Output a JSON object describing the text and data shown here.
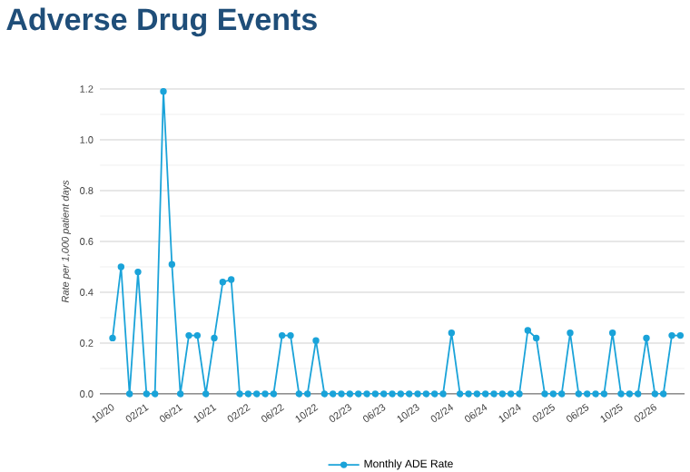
{
  "chart_data": {
    "type": "line",
    "title": "Adverse Drug Events",
    "ylabel": "Rate per 1,000 patient days",
    "categories": [
      "10/20",
      null,
      null,
      null,
      "02/21",
      null,
      null,
      null,
      "06/21",
      null,
      null,
      null,
      "10/21",
      null,
      null,
      null,
      "02/22",
      null,
      null,
      null,
      "06/22",
      null,
      null,
      null,
      "10/22",
      null,
      null,
      null,
      "02/23",
      null,
      null,
      null,
      "06/23",
      null,
      null,
      null,
      "10/23",
      null,
      null,
      null,
      "02/24",
      null,
      null,
      null,
      "06/24",
      null,
      null,
      null,
      "10/24",
      null,
      null,
      null,
      "02/25",
      null,
      null,
      null,
      "06/25",
      null,
      null,
      null,
      "10/25",
      null,
      null,
      null,
      "02/26",
      null,
      null,
      null
    ],
    "series": [
      {
        "name": "Monthly ADE Rate",
        "color": "#1aa3d9",
        "values": [
          0.22,
          0.5,
          0,
          0.48,
          0,
          0,
          1.19,
          0.51,
          0,
          0.23,
          0.23,
          0,
          0.22,
          0.44,
          0.45,
          0,
          0,
          0,
          0,
          0,
          0.23,
          0.23,
          0,
          0,
          0.21,
          0,
          0,
          0,
          0,
          0,
          0,
          0,
          0,
          0,
          0,
          0,
          0,
          0,
          0,
          0,
          0.24,
          0,
          0,
          0,
          0,
          0,
          0,
          0,
          0,
          0.25,
          0.22,
          0,
          0,
          0,
          0.24,
          0,
          0,
          0,
          0,
          0.24,
          0,
          0,
          0,
          0.22,
          0,
          0,
          0.23,
          0.23
        ]
      }
    ],
    "ylim": [
      0,
      1.2
    ],
    "yticks": [
      {
        "value": 0,
        "label": "0.0"
      },
      0.2,
      0.4,
      0.6,
      0.8,
      {
        "value": 1,
        "label": "1.0"
      },
      1.2
    ],
    "grid": true,
    "legend": "bottom",
    "marker": "circle",
    "line_style": "solid"
  }
}
